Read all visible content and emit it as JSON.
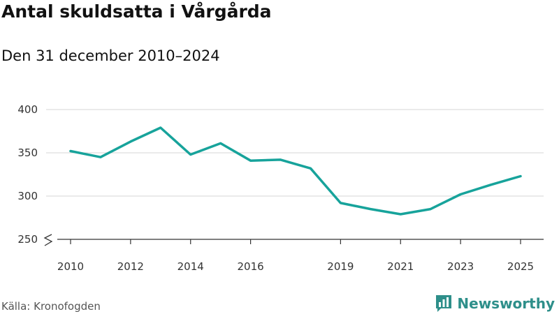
{
  "header": {
    "title": "Antal skuldsatta i Vårgårda",
    "subtitle": "Den 31 december 2010–2024"
  },
  "footer": {
    "source": "Källa: Kronofogden",
    "brand": "Newsworthy",
    "brand_icon": "bar-chart-icon",
    "brand_color": "#2e8f8a"
  },
  "chart_data": {
    "type": "line",
    "title": "Antal skuldsatta i Vårgårda",
    "subtitle": "Den 31 december 2010–2024",
    "xlabel": "",
    "ylabel": "",
    "xlim": [
      2010,
      2025
    ],
    "ylim": [
      250,
      400
    ],
    "y_axis_break": true,
    "grid": true,
    "line_color": "#17a39b",
    "x_ticks": [
      2010,
      2012,
      2014,
      2016,
      2019,
      2021,
      2023,
      2025
    ],
    "y_ticks": [
      250,
      300,
      350,
      400
    ],
    "series": [
      {
        "name": "Antal skuldsatta",
        "x": [
          2010,
          2011,
          2012,
          2013,
          2014,
          2015,
          2016,
          2017,
          2018,
          2019,
          2020,
          2021,
          2022,
          2023,
          2024,
          2025
        ],
        "values": [
          352,
          345,
          363,
          379,
          348,
          361,
          341,
          342,
          332,
          292,
          285,
          279,
          285,
          302,
          313,
          323
        ]
      }
    ]
  }
}
